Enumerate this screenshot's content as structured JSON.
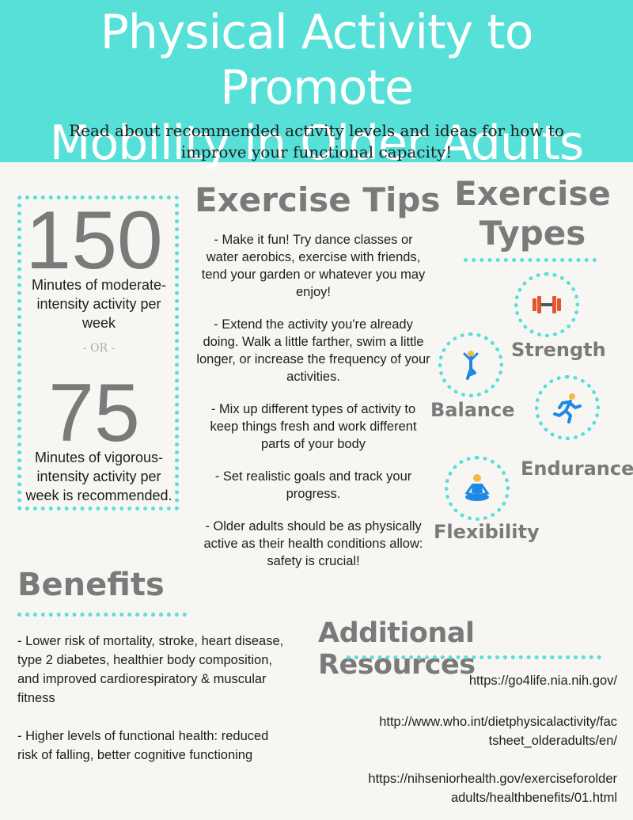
{
  "header": {
    "title_line1": "Physical Activity to Promote",
    "title_line2": "Mobility in Older Adults",
    "subtitle_line1": "Read about recommended activity levels and ideas for how to",
    "subtitle_line2": "improve your functional capacity!"
  },
  "stats": {
    "moderate_value": "150",
    "moderate_text": "Minutes of moderate-intensity activity per week",
    "or_text": "- OR -",
    "vigorous_value": "75",
    "vigorous_text": "Minutes of vigorous-intensity activity per week is recommended."
  },
  "tips": {
    "heading": "Exercise Tips",
    "items": [
      "- Make it fun! Try dance classes or water aerobics, exercise with friends, tend your garden or whatever you may enjoy!",
      "- Extend the activity you're already doing.  Walk a little farther, swim a little longer, or increase the frequency of your activities.",
      "- Mix up different types of activity to keep things fresh and work different parts of your body",
      "- Set realistic goals and track your progress.",
      "- Older adults should be as physically active as their health conditions allow: safety is crucial!"
    ]
  },
  "types": {
    "heading_line1": "Exercise",
    "heading_line2": "Types",
    "strength": "Strength",
    "balance": "Balance",
    "endurance": "Endurance",
    "flexibility": "Flexibility",
    "icons": [
      "dumbbell-icon",
      "balance-pose-icon",
      "runner-icon",
      "meditation-icon"
    ],
    "accent_color": "#56e0d8",
    "icon_color": "#1e88e5"
  },
  "benefits": {
    "heading": "Benefits",
    "items": [
      "- Lower risk of mortality, stroke, heart disease, type 2 diabetes, healthier body composition, and improved cardiorespiratory & muscular fitness",
      "- Higher levels of functional health: reduced risk of falling, better cognitive functioning"
    ]
  },
  "resources": {
    "heading": "Additional Resources",
    "link1": "https://go4life.nia.nih.gov/",
    "link2_line1": "http://www.who.int/dietphysicalactivity/fac",
    "link2_line2": "tsheet_olderadults/en/",
    "link3_line1": "https://nihseniorhealth.gov/exerciseforolder",
    "link3_line2": "adults/healthbenefits/01.html"
  }
}
